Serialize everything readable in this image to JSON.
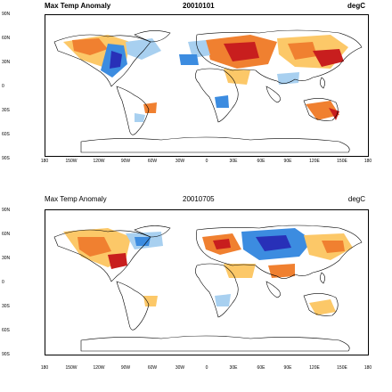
{
  "panels": [
    {
      "title_left": "Max Temp Anomaly",
      "title_center": "20010101",
      "title_right": "degC"
    },
    {
      "title_left": "Max Temp Anomaly",
      "title_center": "20010705",
      "title_right": "degC"
    }
  ],
  "lat_labels": [
    "90N",
    "60N",
    "30N",
    "0",
    "30S",
    "60S",
    "90S"
  ],
  "lon_labels": [
    "180",
    "150W",
    "120W",
    "90W",
    "60W",
    "30W",
    "0",
    "30E",
    "60E",
    "90E",
    "120E",
    "150E",
    "180"
  ],
  "colors": {
    "warm_strong": "#c81e1e",
    "warm": "#f08030",
    "warm_light": "#fcc868",
    "cool_light": "#a8d0f0",
    "cool": "#3c8ce0",
    "cool_strong": "#2830b8"
  }
}
